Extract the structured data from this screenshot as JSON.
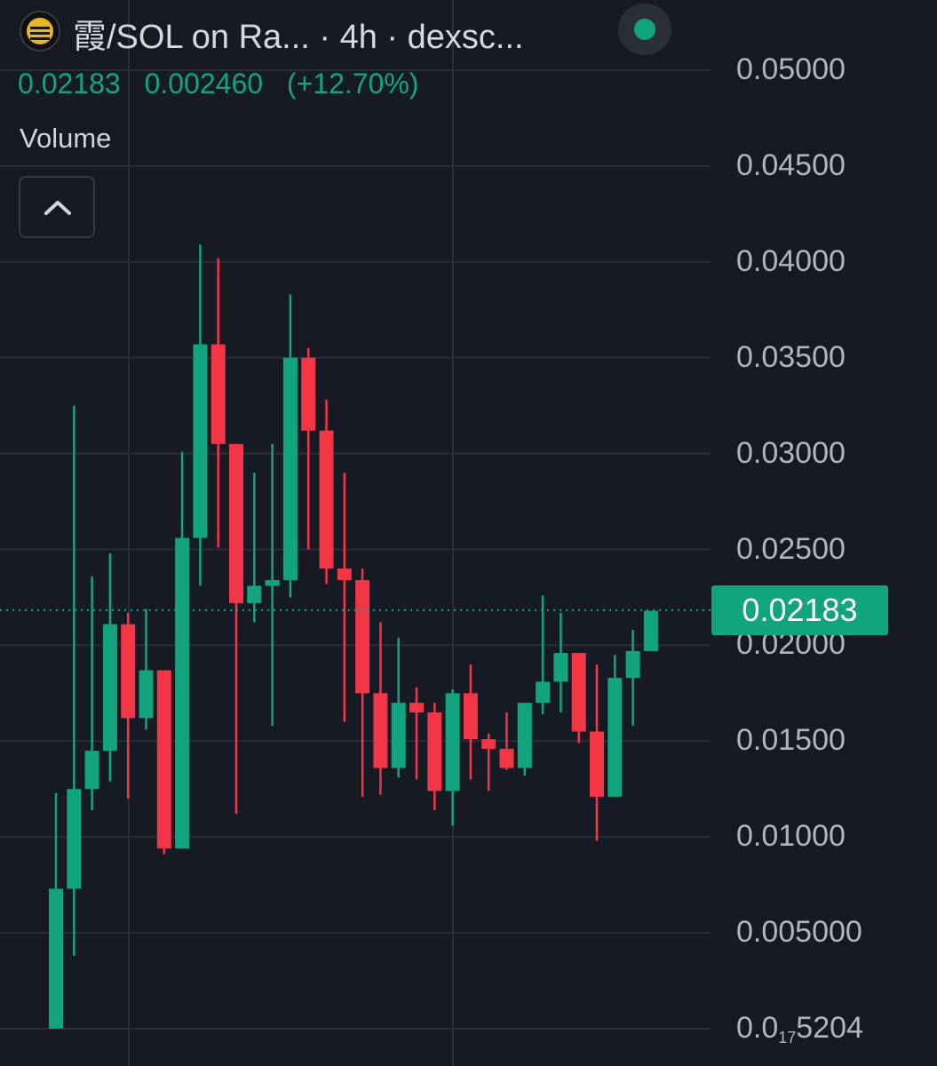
{
  "header": {
    "title": "霞/SOL on Ra...  · 4h · dexsc...",
    "logo_icon": "token-logo-icon",
    "live_icon": "live-status-dot-icon",
    "live_color": "#12a37f"
  },
  "legend": {
    "close": "0.02183",
    "change": "0.002460",
    "change_pct": "(+12.70%)",
    "color": "#12a37f"
  },
  "volume": {
    "label": "Volume",
    "collapse_icon": "chevron-up-icon"
  },
  "price_axis": {
    "labels": [
      "0.05000",
      "0.04500",
      "0.04000",
      "0.03500",
      "0.03000",
      "0.02500",
      "0.02000",
      "0.01500",
      "0.01000",
      "0.005000"
    ],
    "bottom_label_main": "0.0",
    "bottom_label_sub": "17",
    "bottom_label_tail": "5204",
    "current_price": "0.02183"
  },
  "colors": {
    "background": "#161a25",
    "up": "#12a37f",
    "down": "#f23645",
    "grid": "#2a2e39"
  },
  "chart_data": {
    "type": "candlestick",
    "interval": "4h",
    "ylim": [
      0.0,
      0.05
    ],
    "current_price": 0.02183,
    "candles": [
      {
        "o": 0.0,
        "h": 0.0123,
        "l": 0.0,
        "c": 0.0073
      },
      {
        "o": 0.0073,
        "h": 0.0325,
        "l": 0.0038,
        "c": 0.0125
      },
      {
        "o": 0.0125,
        "h": 0.0236,
        "l": 0.0114,
        "c": 0.0145
      },
      {
        "o": 0.0145,
        "h": 0.0248,
        "l": 0.0129,
        "c": 0.0211
      },
      {
        "o": 0.0211,
        "h": 0.0217,
        "l": 0.012,
        "c": 0.0162
      },
      {
        "o": 0.0162,
        "h": 0.0219,
        "l": 0.0156,
        "c": 0.0187
      },
      {
        "o": 0.0187,
        "h": 0.0187,
        "l": 0.0091,
        "c": 0.0094
      },
      {
        "o": 0.0094,
        "h": 0.0301,
        "l": 0.0094,
        "c": 0.0256
      },
      {
        "o": 0.0256,
        "h": 0.0409,
        "l": 0.0231,
        "c": 0.0357
      },
      {
        "o": 0.0357,
        "h": 0.0402,
        "l": 0.0251,
        "c": 0.0305
      },
      {
        "o": 0.0305,
        "h": 0.0305,
        "l": 0.0112,
        "c": 0.0222
      },
      {
        "o": 0.0222,
        "h": 0.029,
        "l": 0.0212,
        "c": 0.0231
      },
      {
        "o": 0.0231,
        "h": 0.0305,
        "l": 0.0158,
        "c": 0.0234
      },
      {
        "o": 0.0234,
        "h": 0.0383,
        "l": 0.0225,
        "c": 0.035
      },
      {
        "o": 0.035,
        "h": 0.0355,
        "l": 0.025,
        "c": 0.0312
      },
      {
        "o": 0.0312,
        "h": 0.0328,
        "l": 0.0232,
        "c": 0.024
      },
      {
        "o": 0.024,
        "h": 0.029,
        "l": 0.016,
        "c": 0.0234
      },
      {
        "o": 0.0234,
        "h": 0.024,
        "l": 0.0121,
        "c": 0.0175
      },
      {
        "o": 0.0175,
        "h": 0.0212,
        "l": 0.0122,
        "c": 0.0136
      },
      {
        "o": 0.0136,
        "h": 0.0204,
        "l": 0.0131,
        "c": 0.017
      },
      {
        "o": 0.017,
        "h": 0.0178,
        "l": 0.013,
        "c": 0.0165
      },
      {
        "o": 0.0165,
        "h": 0.017,
        "l": 0.0114,
        "c": 0.0124
      },
      {
        "o": 0.0124,
        "h": 0.0177,
        "l": 0.0106,
        "c": 0.0175
      },
      {
        "o": 0.0175,
        "h": 0.019,
        "l": 0.013,
        "c": 0.0151
      },
      {
        "o": 0.0151,
        "h": 0.0154,
        "l": 0.0124,
        "c": 0.0146
      },
      {
        "o": 0.0146,
        "h": 0.0165,
        "l": 0.0135,
        "c": 0.0136
      },
      {
        "o": 0.0136,
        "h": 0.0166,
        "l": 0.0132,
        "c": 0.017
      },
      {
        "o": 0.017,
        "h": 0.0226,
        "l": 0.0164,
        "c": 0.0181
      },
      {
        "o": 0.0181,
        "h": 0.0217,
        "l": 0.0165,
        "c": 0.0196
      },
      {
        "o": 0.0196,
        "h": 0.0196,
        "l": 0.0149,
        "c": 0.0155
      },
      {
        "o": 0.0155,
        "h": 0.019,
        "l": 0.0098,
        "c": 0.0121
      },
      {
        "o": 0.0121,
        "h": 0.0195,
        "l": 0.0121,
        "c": 0.0183
      },
      {
        "o": 0.0183,
        "h": 0.0208,
        "l": 0.0158,
        "c": 0.0197
      },
      {
        "o": 0.0197,
        "h": 0.0218,
        "l": 0.0197,
        "c": 0.0218
      }
    ]
  }
}
